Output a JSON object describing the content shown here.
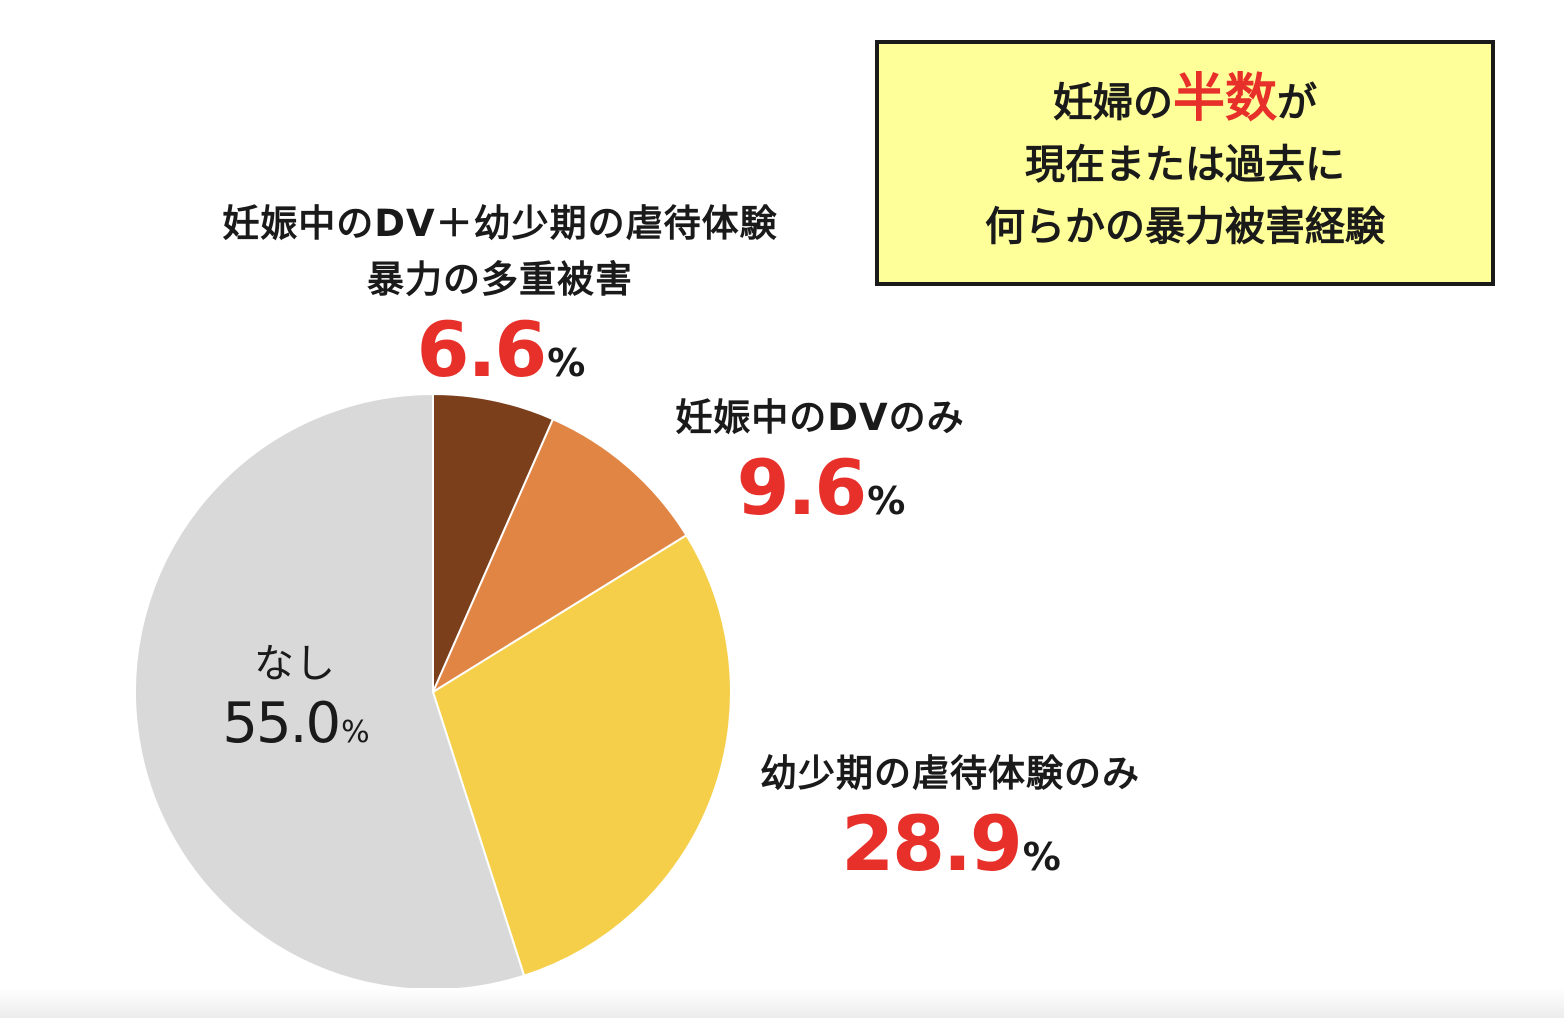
{
  "headline": {
    "line1_pre": "妊婦の",
    "line1_highlight": "半数",
    "line1_post": "が",
    "line2": "現在または過去に",
    "line3": "何らかの暴力被害経験"
  },
  "colors": {
    "highlight": "#e8302a",
    "box_bg": "#ffff99",
    "slice_both": "#7b3f1c",
    "slice_dv": "#e08544",
    "slice_abuse": "#f5cf4a",
    "slice_none": "#d9d9d9"
  },
  "chart_data": {
    "type": "pie",
    "start_angle_deg": 0,
    "direction": "clockwise",
    "slices": [
      {
        "label_line1": "妊娠中のDV＋幼少期の虐待体験",
        "label_line2": "暴力の多重被害",
        "value": 6.6,
        "display": "6.6",
        "unit": "%",
        "color": "#7b3f1c"
      },
      {
        "label_line1": "妊娠中のDVのみ",
        "value": 9.6,
        "display": "9.6",
        "unit": "%",
        "color": "#e08544"
      },
      {
        "label_line1": "幼少期の虐待体験のみ",
        "value": 28.9,
        "display": "28.9",
        "unit": "%",
        "color": "#f5cf4a"
      },
      {
        "label_line1": "なし",
        "value": 55.0,
        "display": "55.0",
        "unit": "%",
        "color": "#d9d9d9"
      }
    ]
  }
}
